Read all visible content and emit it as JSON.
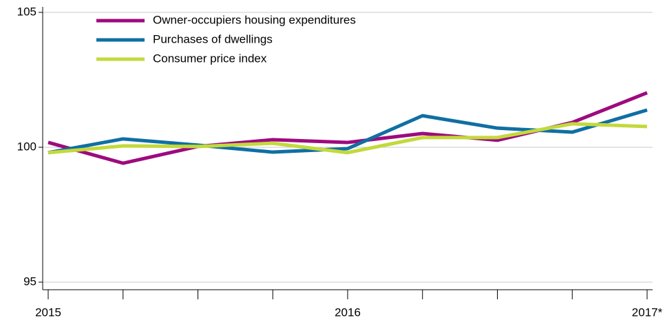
{
  "chart_data": {
    "type": "line",
    "categories": [
      "2015",
      null,
      null,
      null,
      "2016",
      null,
      null,
      null,
      "2017*"
    ],
    "series": [
      {
        "name": "Owner-occupiers housing expenditures",
        "color": "#9e0a7e",
        "values": [
          100.18,
          99.41,
          100.03,
          100.28,
          100.18,
          100.51,
          100.26,
          100.92,
          102.02
        ]
      },
      {
        "name": "Purchases of dwellings",
        "color": "#0f6fa3",
        "values": [
          99.8,
          100.31,
          100.08,
          99.82,
          99.95,
          101.17,
          100.71,
          100.56,
          101.38
        ]
      },
      {
        "name": "Consumer price index",
        "color": "#c3d93c",
        "values": [
          99.8,
          100.05,
          100.03,
          100.15,
          99.8,
          100.36,
          100.36,
          100.87,
          100.77
        ]
      }
    ],
    "ylim": [
      95,
      105
    ],
    "yticks": [
      95,
      100,
      105
    ],
    "grid": true,
    "legend": "top-left"
  }
}
